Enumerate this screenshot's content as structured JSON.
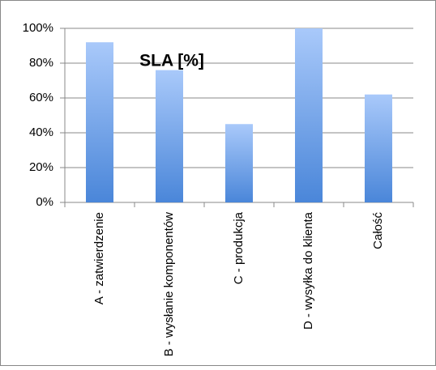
{
  "chart_data": {
    "type": "bar",
    "title": "SLA [%]",
    "categories": [
      "A - zatwierdzenie",
      "B - wysłanie komponentów",
      "C - produkcja",
      "D - wysyłka do klienta",
      "Całość"
    ],
    "values": [
      92,
      76,
      45,
      100,
      62
    ],
    "color": "#4a86d9",
    "ylim": [
      0,
      100
    ],
    "yticks": [
      {
        "value": 0,
        "label": "0%"
      },
      {
        "value": 20,
        "label": "20%"
      },
      {
        "value": 40,
        "label": "40%"
      },
      {
        "value": 60,
        "label": "60%"
      },
      {
        "value": 80,
        "label": "80%"
      },
      {
        "value": 100,
        "label": "100%"
      }
    ],
    "grid": true
  }
}
